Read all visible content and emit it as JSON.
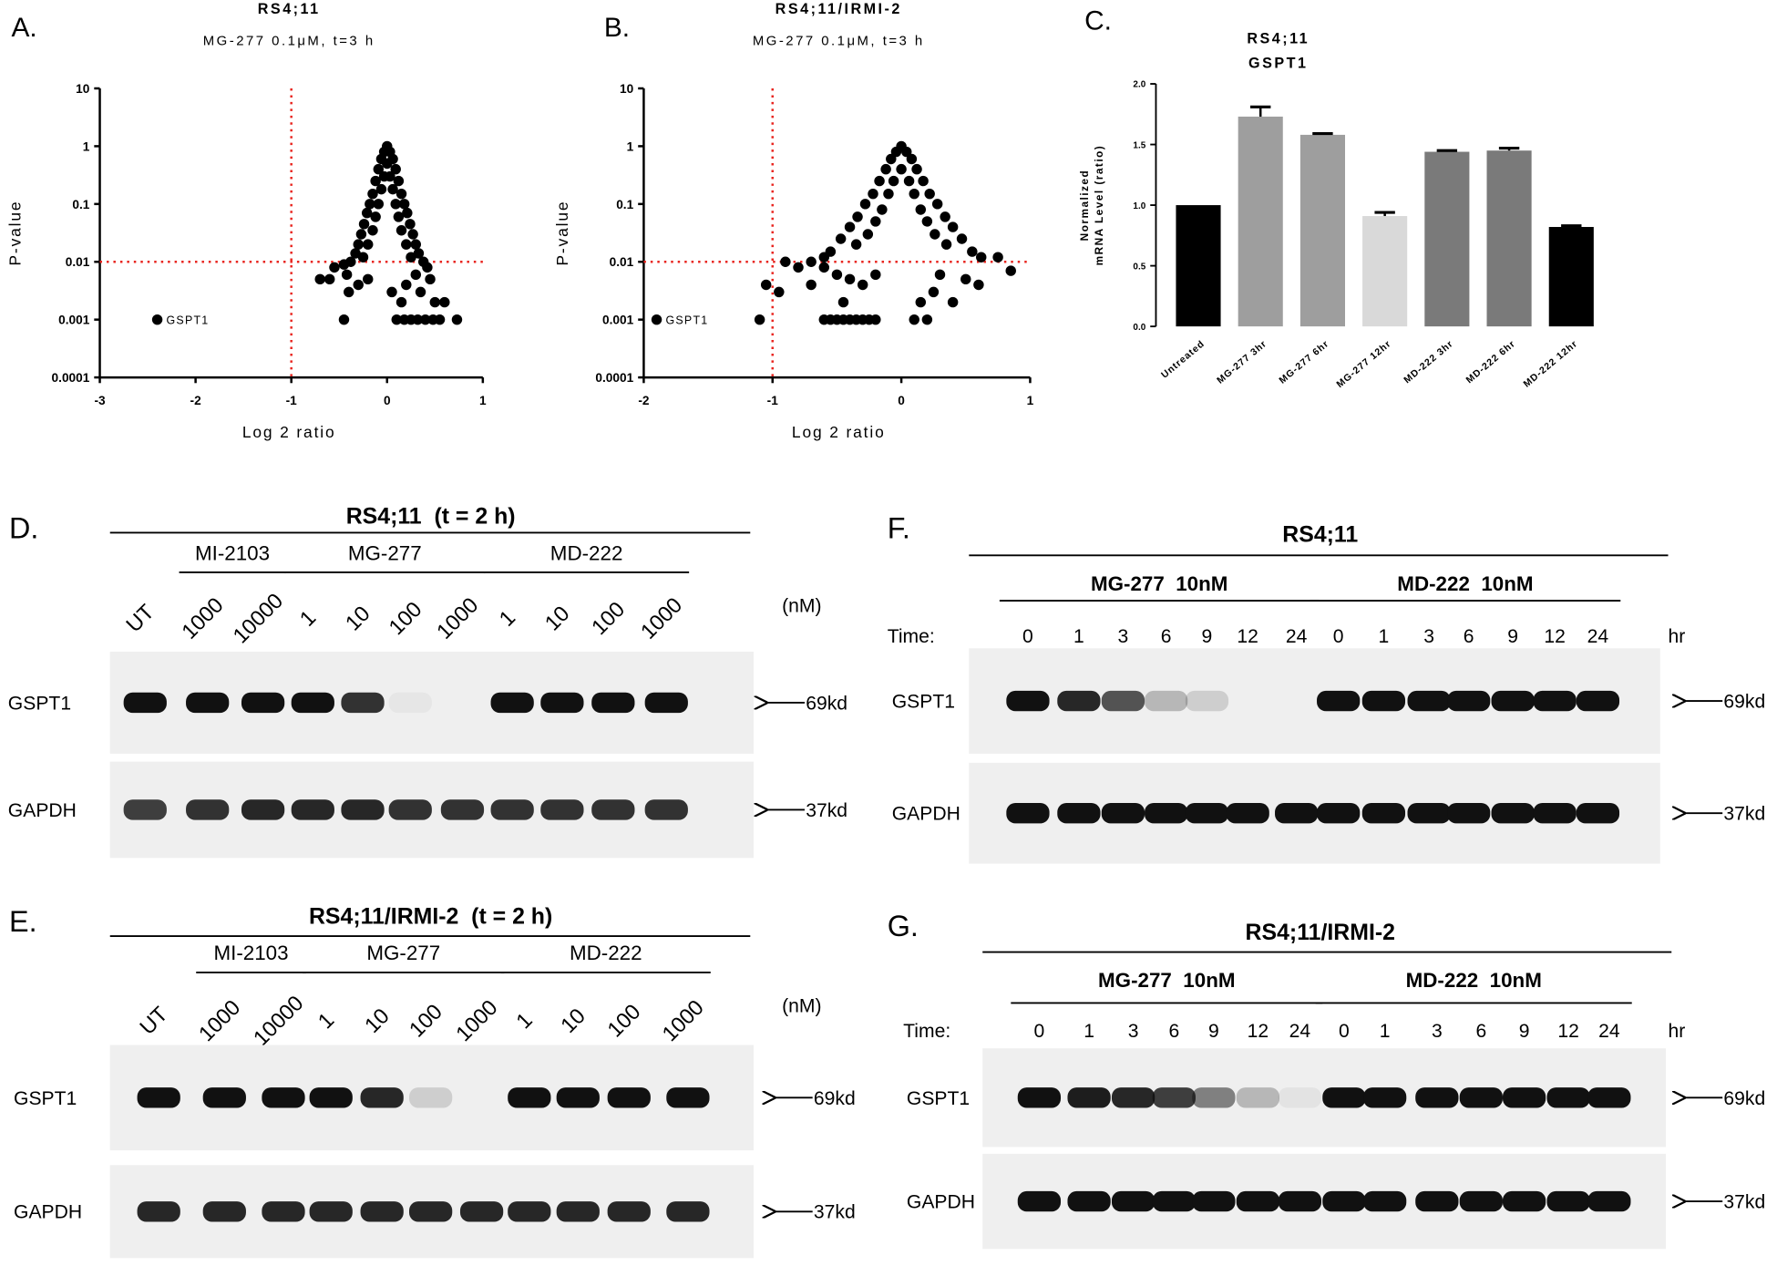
{
  "chart_data": [
    {
      "type": "scatter",
      "panel_label": "A.",
      "title": "RS4;11",
      "subtitle": "MG-277 0.1μM, t=3 h",
      "xlabel": "Log 2 ratio",
      "ylabel": "P-value",
      "ylog": true,
      "xlim": [
        -3,
        1
      ],
      "ylim": [
        0.0001,
        10
      ],
      "xticks": [
        -3,
        -2,
        -1,
        0,
        1
      ],
      "yticks": [
        0.0001,
        0.001,
        0.01,
        0.1,
        1,
        10
      ],
      "ref_lines": {
        "x": [
          -1
        ],
        "y": [
          0.01
        ],
        "color": "#e8251f"
      },
      "color": "#000000",
      "x": [
        0,
        -0.03,
        0.03,
        -0.06,
        0.06,
        0,
        -0.09,
        0.09,
        -0.03,
        0.03,
        -0.12,
        0.12,
        -0.06,
        0.06,
        -0.15,
        0.15,
        -0.18,
        0.18,
        -0.09,
        0.09,
        -0.21,
        0.21,
        -0.12,
        0.12,
        -0.24,
        0.24,
        -0.15,
        0.15,
        -0.27,
        0.27,
        -0.3,
        0.3,
        -0.2,
        0.2,
        -0.33,
        0.33,
        -0.38,
        0.38,
        -0.25,
        0.25,
        -0.45,
        -0.55,
        -0.42,
        -0.6,
        -0.7,
        -0.3,
        -0.4,
        -0.2,
        -0.45,
        0.05,
        0.15,
        0.1,
        0.18,
        0.25,
        0.32,
        0.4,
        0.48,
        0.55,
        0.73,
        0.45,
        0.5,
        0.6,
        0.42,
        0.3,
        0.2,
        0.35,
        -2.4
      ],
      "values": [
        1,
        0.8,
        0.8,
        0.6,
        0.6,
        0.5,
        0.4,
        0.4,
        0.3,
        0.3,
        0.25,
        0.25,
        0.18,
        0.18,
        0.15,
        0.15,
        0.1,
        0.1,
        0.1,
        0.1,
        0.07,
        0.07,
        0.06,
        0.06,
        0.045,
        0.045,
        0.035,
        0.035,
        0.03,
        0.03,
        0.02,
        0.02,
        0.02,
        0.02,
        0.014,
        0.014,
        0.01,
        0.01,
        0.012,
        0.012,
        0.009,
        0.008,
        0.006,
        0.005,
        0.005,
        0.004,
        0.003,
        0.005,
        0.001,
        0.003,
        0.002,
        0.001,
        0.001,
        0.001,
        0.001,
        0.001,
        0.001,
        0.001,
        0.001,
        0.005,
        0.002,
        0.002,
        0.008,
        0.006,
        0.004,
        0.003,
        0.001
      ],
      "annotations": [
        {
          "text": "GSPT1",
          "x": -2.4,
          "y": 0.001
        }
      ]
    },
    {
      "type": "scatter",
      "panel_label": "B.",
      "title": "RS4;11/IRMI-2",
      "subtitle": "MG-277 0.1μM, t=3 h",
      "xlabel": "Log 2 ratio",
      "ylabel": "P-value",
      "ylog": true,
      "xlim": [
        -2,
        1
      ],
      "ylim": [
        0.0001,
        10
      ],
      "xticks": [
        -2,
        -1,
        0,
        1
      ],
      "yticks": [
        0.0001,
        0.001,
        0.01,
        0.1,
        1,
        10
      ],
      "ref_lines": {
        "x": [
          -1
        ],
        "y": [
          0.01
        ],
        "color": "#e8251f"
      },
      "color": "#000000",
      "x": [
        0,
        -0.04,
        0.04,
        -0.08,
        0.08,
        -0.12,
        0.12,
        0,
        -0.17,
        0.17,
        -0.06,
        0.06,
        -0.22,
        0.22,
        -0.1,
        0.1,
        -0.28,
        0.28,
        -0.15,
        0.15,
        -0.34,
        0.34,
        -0.2,
        0.2,
        -0.4,
        0.4,
        -0.26,
        0.26,
        -0.47,
        0.47,
        -0.35,
        0.35,
        -0.55,
        0.55,
        -0.6,
        0.62,
        -0.7,
        0.75,
        0.85,
        -0.8,
        -0.9,
        -1.05,
        -0.95,
        -0.6,
        -0.5,
        -0.4,
        -0.3,
        -0.2,
        -0.7,
        -0.45,
        0.3,
        0.5,
        0.6,
        0.25,
        0.4,
        0.15,
        -0.6,
        -0.55,
        -0.5,
        -0.45,
        -0.4,
        -0.35,
        -0.3,
        -0.25,
        -0.2,
        -1.1,
        0.1,
        0.2,
        -1.9
      ],
      "values": [
        1,
        0.8,
        0.8,
        0.6,
        0.6,
        0.4,
        0.4,
        0.4,
        0.25,
        0.25,
        0.25,
        0.25,
        0.15,
        0.15,
        0.15,
        0.15,
        0.1,
        0.1,
        0.08,
        0.08,
        0.06,
        0.06,
        0.05,
        0.05,
        0.04,
        0.04,
        0.03,
        0.03,
        0.025,
        0.025,
        0.02,
        0.02,
        0.015,
        0.015,
        0.012,
        0.012,
        0.01,
        0.012,
        0.007,
        0.008,
        0.01,
        0.004,
        0.003,
        0.008,
        0.006,
        0.005,
        0.004,
        0.006,
        0.004,
        0.002,
        0.006,
        0.005,
        0.004,
        0.003,
        0.002,
        0.002,
        0.001,
        0.001,
        0.001,
        0.001,
        0.001,
        0.001,
        0.001,
        0.001,
        0.001,
        0.001,
        0.001,
        0.001,
        0.001
      ],
      "annotations": [
        {
          "text": "GSPT1",
          "x": -1.9,
          "y": 0.001
        }
      ]
    },
    {
      "type": "bar",
      "panel_label": "C.",
      "title": "RS4;11",
      "subtitle": "GSPT1",
      "ylabel": [
        "Normalized",
        "mRNA Level (ratio)"
      ],
      "categories": [
        "Untreated",
        "MG-277 3hr",
        "MG-277 6hr",
        "MG-277 12hr",
        "MD-222 3hr",
        "MD-222 6hr",
        "MD-222 12hr"
      ],
      "values": [
        1.0,
        1.73,
        1.58,
        0.91,
        1.44,
        1.45,
        0.82
      ],
      "errors": [
        0,
        0.08,
        0.01,
        0.03,
        0.01,
        0.02,
        0.01
      ],
      "colors": [
        "#000000",
        "#9e9e9e",
        "#9e9e9e",
        "#d9d9d9",
        "#7a7a7a",
        "#7a7a7a",
        "#000000"
      ],
      "ylim": [
        0,
        2
      ],
      "yticks": [
        {
          "value": 0,
          "label": "0.0"
        },
        {
          "value": 0.5,
          "label": "0.5"
        },
        {
          "value": 1,
          "label": "1.0"
        },
        {
          "value": 1.5,
          "label": "1.5"
        },
        {
          "value": 2,
          "label": "2.0"
        }
      ]
    }
  ],
  "blots": [
    {
      "panel_label": "D.",
      "title": "RS4;11  (t = 2 h)",
      "groups": [
        {
          "lanes": [
            "UT"
          ]
        },
        {
          "name": "MI-2103",
          "lanes": [
            "1000",
            "10000"
          ]
        },
        {
          "name": "MG-277",
          "lanes": [
            "1",
            "10",
            "100",
            "1000"
          ]
        },
        {
          "name": "MD-222",
          "lanes": [
            "1",
            "10",
            "100",
            "1000"
          ]
        }
      ],
      "unit": "(nM)",
      "rows": [
        {
          "label": "GSPT1",
          "marker": "69kd",
          "bands": [
            1,
            1,
            1,
            1,
            0.85,
            0.04,
            0,
            1,
            1,
            1,
            1
          ]
        },
        {
          "label": "GAPDH",
          "marker": "37kd",
          "bands": [
            0.8,
            0.85,
            0.9,
            0.9,
            0.9,
            0.85,
            0.85,
            0.85,
            0.85,
            0.85,
            0.85
          ]
        }
      ]
    },
    {
      "panel_label": "E.",
      "title": "RS4;11/IRMI-2  (t = 2 h)",
      "groups": [
        {
          "lanes": [
            "UT"
          ]
        },
        {
          "name": "MI-2103",
          "lanes": [
            "1000",
            "10000"
          ]
        },
        {
          "name": "MG-277",
          "lanes": [
            "1",
            "10",
            "100",
            "1000"
          ]
        },
        {
          "name": "MD-222",
          "lanes": [
            "1",
            "10",
            "100",
            "1000"
          ]
        }
      ],
      "unit": "(nM)",
      "rows": [
        {
          "label": "GSPT1",
          "marker": "69kd",
          "bands": [
            1,
            1,
            1,
            1,
            0.9,
            0.15,
            0,
            1,
            1,
            1,
            1
          ]
        },
        {
          "label": "GAPDH",
          "marker": "37kd",
          "bands": [
            0.9,
            0.9,
            0.9,
            0.9,
            0.9,
            0.9,
            0.9,
            0.9,
            0.9,
            0.9,
            0.9
          ]
        }
      ]
    },
    {
      "panel_label": "F.",
      "title": "RS4;11",
      "lane_prefix": "Time:",
      "groups": [
        {
          "name": "MG-277  10nM",
          "lanes": [
            "0",
            "1",
            "3",
            "6",
            "9",
            "12",
            "24"
          ]
        },
        {
          "name": "MD-222  10nM",
          "lanes": [
            "0",
            "1",
            "3",
            "6",
            "9",
            "12",
            "24"
          ]
        }
      ],
      "unit": "hr",
      "rows": [
        {
          "label": "GSPT1",
          "marker": "69kd",
          "bands": [
            1,
            0.9,
            0.7,
            0.25,
            0.15,
            0,
            0,
            1,
            1,
            1,
            1,
            1,
            1,
            1
          ]
        },
        {
          "label": "GAPDH",
          "marker": "37kd",
          "bands": [
            1,
            1,
            1,
            1,
            1,
            1,
            1,
            1,
            1,
            1,
            1,
            1,
            1,
            1
          ]
        }
      ]
    },
    {
      "panel_label": "G.",
      "title": "RS4;11/IRMI-2",
      "lane_prefix": "Time:",
      "groups": [
        {
          "name": "MG-277  10nM",
          "lanes": [
            "0",
            "1",
            "3",
            "6",
            "9",
            "12",
            "24"
          ]
        },
        {
          "name": "MD-222  10nM",
          "lanes": [
            "0",
            "1",
            "3",
            "6",
            "9",
            "12",
            "24"
          ]
        }
      ],
      "unit": "hr",
      "rows": [
        {
          "label": "GSPT1",
          "marker": "69kd",
          "bands": [
            1,
            0.95,
            0.9,
            0.8,
            0.5,
            0.25,
            0.05,
            1,
            1,
            1,
            1,
            1,
            1,
            1
          ]
        },
        {
          "label": "GAPDH",
          "marker": "37kd",
          "bands": [
            1,
            1,
            1,
            1,
            1,
            1,
            1,
            1,
            1,
            1,
            1,
            1,
            1,
            1
          ]
        }
      ]
    }
  ]
}
